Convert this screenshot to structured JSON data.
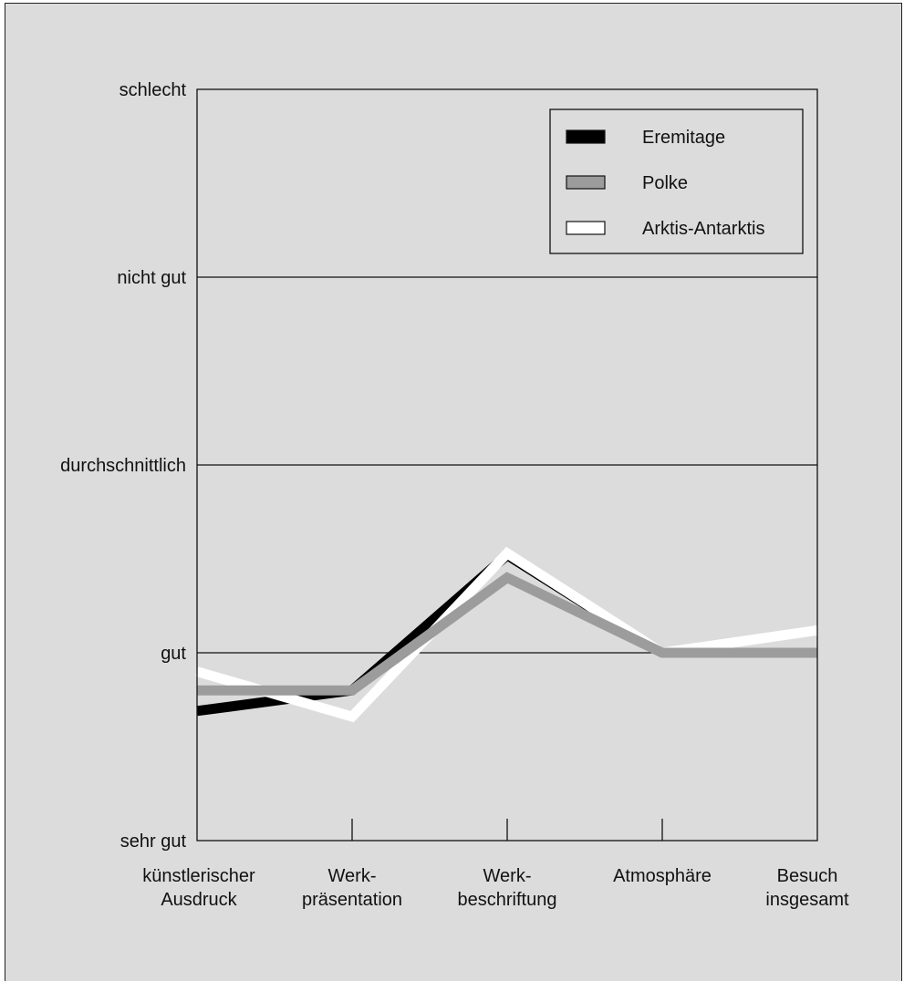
{
  "chart_data": {
    "type": "line",
    "categories": [
      [
        "künstlerischer",
        "Ausdruck"
      ],
      [
        "Werk-",
        "präsentation"
      ],
      [
        "Werk-",
        "beschriftung"
      ],
      [
        "Atmosphäre"
      ],
      [
        "Besuch",
        "insgesamt"
      ]
    ],
    "y_ticks": [
      "sehr gut",
      "gut",
      "durchschnittlich",
      "nicht gut",
      "schlecht"
    ],
    "ylim": [
      1,
      5
    ],
    "grid": true,
    "legend_position": "top-right",
    "series": [
      {
        "name": "Eremitage",
        "color": "#000000",
        "stroke": "#000000",
        "values": [
          1.69,
          1.8,
          2.52,
          2.0,
          2.0
        ]
      },
      {
        "name": "Arktis-Antarktis",
        "color": "#ffffff",
        "stroke": "#ffffff",
        "values": [
          1.9,
          1.66,
          2.53,
          2.0,
          2.12
        ]
      },
      {
        "name": "Polke",
        "color": "#9c9c9c",
        "stroke": "#9c9c9c",
        "values": [
          1.8,
          1.8,
          2.4,
          2.0,
          2.0
        ]
      }
    ],
    "legend_order": [
      "Eremitage",
      "Polke",
      "Arktis-Antarktis"
    ]
  }
}
